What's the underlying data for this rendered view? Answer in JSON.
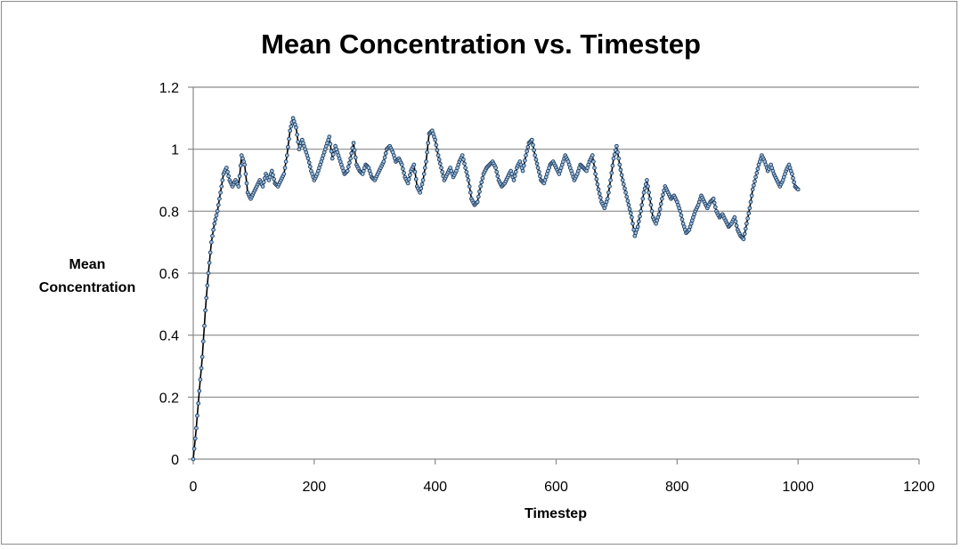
{
  "chart_data": {
    "type": "line",
    "title": "Mean Concentration vs. Timestep",
    "xlabel": "Timestep",
    "ylabel_lines": [
      "Mean",
      "Concentration"
    ],
    "xlim": [
      0,
      1200
    ],
    "ylim": [
      0,
      1.2
    ],
    "x_ticks": [
      0,
      200,
      400,
      600,
      800,
      1000,
      1200
    ],
    "y_ticks": [
      0,
      0.2,
      0.4,
      0.6,
      0.8,
      1,
      1.2
    ],
    "y_tick_labels": [
      "0",
      "0.2",
      "0.4",
      "0.6",
      "0.8",
      "1",
      "1.2"
    ],
    "grid": "horizontal",
    "legend": "none",
    "line_color": "#000000",
    "marker_fill": "#9fc4e0",
    "marker_edge": "#1f3a5f",
    "keypoints": [
      [
        0,
        0.0
      ],
      [
        5,
        0.1
      ],
      [
        10,
        0.22
      ],
      [
        15,
        0.33
      ],
      [
        20,
        0.48
      ],
      [
        25,
        0.6
      ],
      [
        30,
        0.7
      ],
      [
        35,
        0.76
      ],
      [
        40,
        0.8
      ],
      [
        45,
        0.86
      ],
      [
        50,
        0.92
      ],
      [
        55,
        0.94
      ],
      [
        60,
        0.9
      ],
      [
        65,
        0.88
      ],
      [
        70,
        0.9
      ],
      [
        75,
        0.88
      ],
      [
        80,
        0.98
      ],
      [
        85,
        0.95
      ],
      [
        90,
        0.86
      ],
      [
        95,
        0.84
      ],
      [
        100,
        0.86
      ],
      [
        105,
        0.88
      ],
      [
        110,
        0.9
      ],
      [
        115,
        0.88
      ],
      [
        120,
        0.92
      ],
      [
        125,
        0.9
      ],
      [
        130,
        0.93
      ],
      [
        135,
        0.89
      ],
      [
        140,
        0.88
      ],
      [
        145,
        0.9
      ],
      [
        150,
        0.92
      ],
      [
        155,
        0.98
      ],
      [
        160,
        1.06
      ],
      [
        165,
        1.1
      ],
      [
        170,
        1.07
      ],
      [
        175,
        1.0
      ],
      [
        180,
        1.03
      ],
      [
        185,
        1.0
      ],
      [
        190,
        0.97
      ],
      [
        195,
        0.93
      ],
      [
        200,
        0.9
      ],
      [
        205,
        0.92
      ],
      [
        210,
        0.95
      ],
      [
        215,
        0.98
      ],
      [
        220,
        1.01
      ],
      [
        225,
        1.04
      ],
      [
        230,
        0.97
      ],
      [
        235,
        1.01
      ],
      [
        240,
        0.98
      ],
      [
        245,
        0.95
      ],
      [
        250,
        0.92
      ],
      [
        255,
        0.93
      ],
      [
        260,
        0.97
      ],
      [
        265,
        1.02
      ],
      [
        270,
        0.95
      ],
      [
        275,
        0.93
      ],
      [
        280,
        0.92
      ],
      [
        285,
        0.95
      ],
      [
        290,
        0.94
      ],
      [
        295,
        0.91
      ],
      [
        300,
        0.9
      ],
      [
        305,
        0.92
      ],
      [
        310,
        0.94
      ],
      [
        315,
        0.96
      ],
      [
        320,
        1.0
      ],
      [
        325,
        1.01
      ],
      [
        330,
        0.99
      ],
      [
        335,
        0.96
      ],
      [
        340,
        0.97
      ],
      [
        345,
        0.95
      ],
      [
        350,
        0.91
      ],
      [
        355,
        0.89
      ],
      [
        360,
        0.93
      ],
      [
        365,
        0.95
      ],
      [
        370,
        0.88
      ],
      [
        375,
        0.86
      ],
      [
        380,
        0.9
      ],
      [
        385,
        0.96
      ],
      [
        390,
        1.05
      ],
      [
        395,
        1.06
      ],
      [
        400,
        1.03
      ],
      [
        405,
        0.98
      ],
      [
        410,
        0.94
      ],
      [
        415,
        0.9
      ],
      [
        420,
        0.92
      ],
      [
        425,
        0.94
      ],
      [
        430,
        0.91
      ],
      [
        435,
        0.93
      ],
      [
        440,
        0.96
      ],
      [
        445,
        0.98
      ],
      [
        450,
        0.94
      ],
      [
        455,
        0.9
      ],
      [
        460,
        0.84
      ],
      [
        465,
        0.82
      ],
      [
        470,
        0.83
      ],
      [
        475,
        0.88
      ],
      [
        480,
        0.92
      ],
      [
        485,
        0.94
      ],
      [
        490,
        0.95
      ],
      [
        495,
        0.96
      ],
      [
        500,
        0.94
      ],
      [
        505,
        0.9
      ],
      [
        510,
        0.88
      ],
      [
        515,
        0.89
      ],
      [
        520,
        0.91
      ],
      [
        525,
        0.93
      ],
      [
        530,
        0.9
      ],
      [
        535,
        0.94
      ],
      [
        540,
        0.96
      ],
      [
        545,
        0.93
      ],
      [
        550,
        0.98
      ],
      [
        555,
        1.02
      ],
      [
        560,
        1.03
      ],
      [
        565,
        0.98
      ],
      [
        570,
        0.94
      ],
      [
        575,
        0.9
      ],
      [
        580,
        0.89
      ],
      [
        585,
        0.92
      ],
      [
        590,
        0.95
      ],
      [
        595,
        0.96
      ],
      [
        600,
        0.94
      ],
      [
        605,
        0.92
      ],
      [
        610,
        0.95
      ],
      [
        615,
        0.98
      ],
      [
        620,
        0.96
      ],
      [
        625,
        0.93
      ],
      [
        630,
        0.9
      ],
      [
        635,
        0.92
      ],
      [
        640,
        0.95
      ],
      [
        645,
        0.94
      ],
      [
        650,
        0.93
      ],
      [
        655,
        0.96
      ],
      [
        660,
        0.98
      ],
      [
        665,
        0.92
      ],
      [
        670,
        0.87
      ],
      [
        675,
        0.83
      ],
      [
        680,
        0.81
      ],
      [
        685,
        0.84
      ],
      [
        690,
        0.9
      ],
      [
        695,
        0.97
      ],
      [
        700,
        1.01
      ],
      [
        705,
        0.95
      ],
      [
        710,
        0.9
      ],
      [
        715,
        0.86
      ],
      [
        720,
        0.82
      ],
      [
        725,
        0.78
      ],
      [
        730,
        0.72
      ],
      [
        735,
        0.75
      ],
      [
        740,
        0.8
      ],
      [
        745,
        0.86
      ],
      [
        750,
        0.9
      ],
      [
        755,
        0.84
      ],
      [
        760,
        0.78
      ],
      [
        765,
        0.76
      ],
      [
        770,
        0.79
      ],
      [
        775,
        0.84
      ],
      [
        780,
        0.88
      ],
      [
        785,
        0.86
      ],
      [
        790,
        0.84
      ],
      [
        795,
        0.85
      ],
      [
        800,
        0.83
      ],
      [
        805,
        0.8
      ],
      [
        810,
        0.76
      ],
      [
        815,
        0.73
      ],
      [
        820,
        0.74
      ],
      [
        825,
        0.77
      ],
      [
        830,
        0.8
      ],
      [
        835,
        0.82
      ],
      [
        840,
        0.85
      ],
      [
        845,
        0.83
      ],
      [
        850,
        0.81
      ],
      [
        855,
        0.83
      ],
      [
        860,
        0.84
      ],
      [
        865,
        0.8
      ],
      [
        870,
        0.78
      ],
      [
        875,
        0.79
      ],
      [
        880,
        0.77
      ],
      [
        885,
        0.75
      ],
      [
        890,
        0.76
      ],
      [
        895,
        0.78
      ],
      [
        900,
        0.74
      ],
      [
        905,
        0.72
      ],
      [
        910,
        0.71
      ],
      [
        915,
        0.76
      ],
      [
        920,
        0.81
      ],
      [
        925,
        0.87
      ],
      [
        930,
        0.91
      ],
      [
        935,
        0.95
      ],
      [
        940,
        0.98
      ],
      [
        945,
        0.96
      ],
      [
        950,
        0.93
      ],
      [
        955,
        0.95
      ],
      [
        960,
        0.92
      ],
      [
        965,
        0.9
      ],
      [
        970,
        0.88
      ],
      [
        975,
        0.9
      ],
      [
        980,
        0.93
      ],
      [
        985,
        0.95
      ],
      [
        990,
        0.92
      ],
      [
        995,
        0.88
      ],
      [
        1000,
        0.87
      ]
    ]
  }
}
